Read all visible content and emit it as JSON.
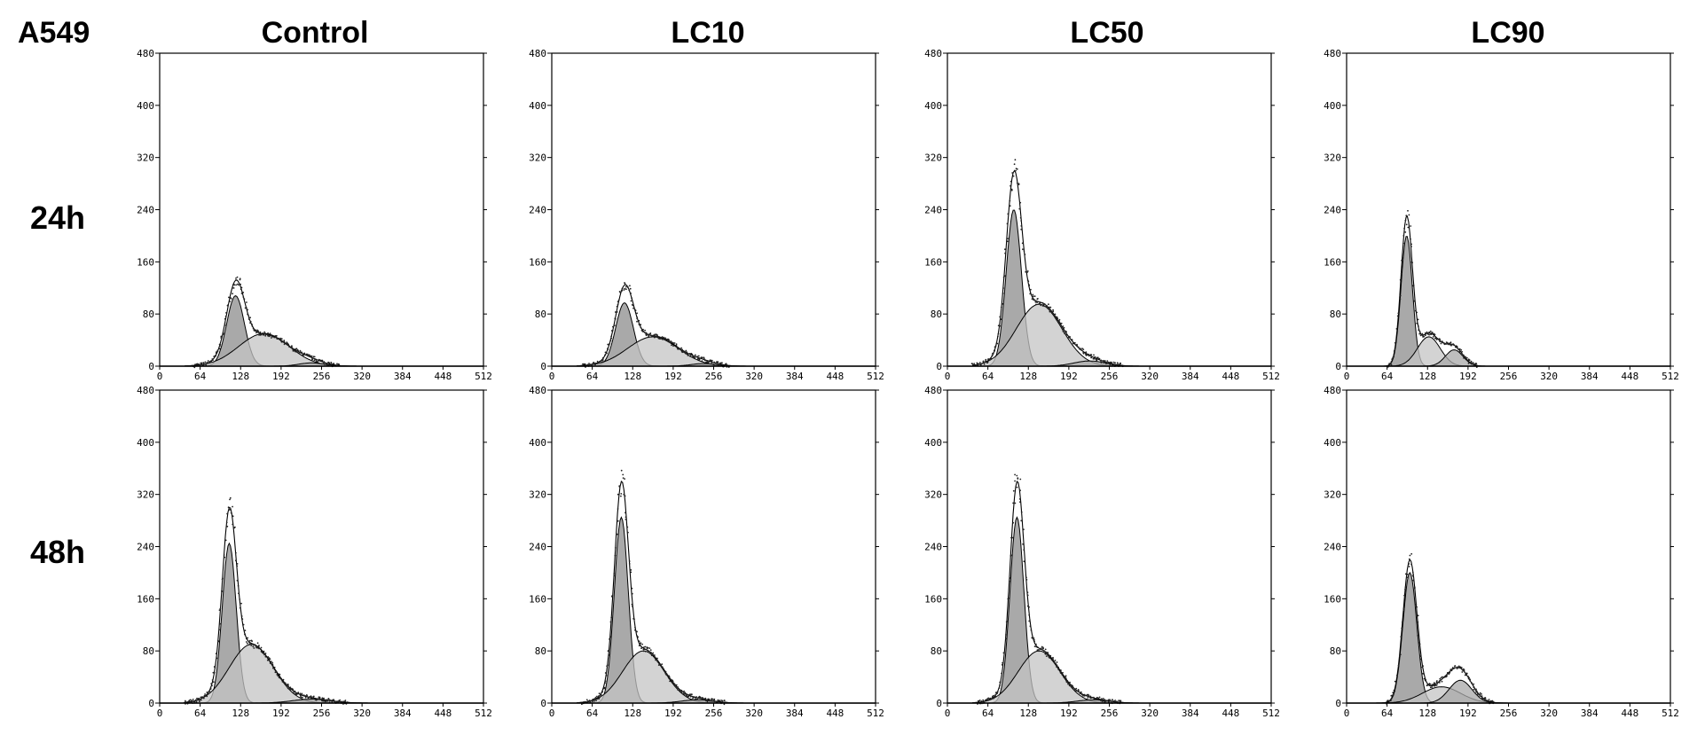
{
  "figure": {
    "cell_line": "A549",
    "columns": [
      "Control",
      "LC10",
      "LC50",
      "LC90"
    ],
    "rows": [
      "24h",
      "48h"
    ]
  },
  "axis": {
    "x_ticks": [
      0,
      64,
      128,
      192,
      256,
      320,
      384,
      448,
      512
    ],
    "y_ticks": [
      0,
      80,
      160,
      240,
      320,
      400,
      480
    ],
    "xlim": [
      0,
      512
    ],
    "ylim": [
      0,
      480
    ]
  },
  "colors": {
    "ink": "#000000",
    "g1_fill": "#8c8c8c",
    "s_fill": "#c4c4c4",
    "g2_fill": "#a8a8a8",
    "dots": "#222222"
  },
  "chart_data": [
    {
      "type": "area",
      "row": "24h",
      "column": "Control",
      "xlim": [
        0,
        512
      ],
      "ylim": [
        0,
        480
      ],
      "series": [
        {
          "mean": 120,
          "sd": 14,
          "peak": 108
        },
        {
          "mean": 165,
          "sd": 40,
          "peak": 50
        },
        {
          "mean": 240,
          "sd": 20,
          "peak": 5
        }
      ],
      "envelope_peak": 132
    },
    {
      "type": "area",
      "row": "24h",
      "column": "LC10",
      "xlim": [
        0,
        512
      ],
      "ylim": [
        0,
        480
      ],
      "series": [
        {
          "mean": 115,
          "sd": 14,
          "peak": 97
        },
        {
          "mean": 160,
          "sd": 40,
          "peak": 45
        },
        {
          "mean": 240,
          "sd": 20,
          "peak": 4
        }
      ],
      "envelope_peak": 125
    },
    {
      "type": "area",
      "row": "24h",
      "column": "LC50",
      "xlim": [
        0,
        512
      ],
      "ylim": [
        0,
        480
      ],
      "series": [
        {
          "mean": 105,
          "sd": 12,
          "peak": 240
        },
        {
          "mean": 145,
          "sd": 36,
          "peak": 95
        },
        {
          "mean": 225,
          "sd": 25,
          "peak": 8
        }
      ],
      "envelope_peak": 300
    },
    {
      "type": "area",
      "row": "24h",
      "column": "LC90",
      "xlim": [
        0,
        512
      ],
      "ylim": [
        0,
        480
      ],
      "series": [
        {
          "mean": 95,
          "sd": 9,
          "peak": 200
        },
        {
          "mean": 130,
          "sd": 18,
          "peak": 45
        },
        {
          "mean": 170,
          "sd": 14,
          "peak": 25
        }
      ],
      "envelope_peak": 230
    },
    {
      "type": "area",
      "row": "48h",
      "column": "Control",
      "xlim": [
        0,
        512
      ],
      "ylim": [
        0,
        480
      ],
      "series": [
        {
          "mean": 110,
          "sd": 11,
          "peak": 245
        },
        {
          "mean": 145,
          "sd": 35,
          "peak": 90
        },
        {
          "mean": 240,
          "sd": 30,
          "peak": 6
        }
      ],
      "envelope_peak": 300
    },
    {
      "type": "area",
      "row": "48h",
      "column": "LC10",
      "xlim": [
        0,
        512
      ],
      "ylim": [
        0,
        480
      ],
      "series": [
        {
          "mean": 110,
          "sd": 11,
          "peak": 285
        },
        {
          "mean": 145,
          "sd": 33,
          "peak": 80
        },
        {
          "mean": 230,
          "sd": 25,
          "peak": 5
        }
      ],
      "envelope_peak": 340
    },
    {
      "type": "area",
      "row": "48h",
      "column": "LC50",
      "xlim": [
        0,
        512
      ],
      "ylim": [
        0,
        480
      ],
      "series": [
        {
          "mean": 110,
          "sd": 11,
          "peak": 285
        },
        {
          "mean": 145,
          "sd": 33,
          "peak": 80
        },
        {
          "mean": 230,
          "sd": 25,
          "peak": 5
        }
      ],
      "envelope_peak": 340
    },
    {
      "type": "area",
      "row": "48h",
      "column": "LC90",
      "xlim": [
        0,
        512
      ],
      "ylim": [
        0,
        480
      ],
      "series": [
        {
          "mean": 100,
          "sd": 11,
          "peak": 200
        },
        {
          "mean": 150,
          "sd": 30,
          "peak": 25
        },
        {
          "mean": 180,
          "sd": 18,
          "peak": 35
        }
      ],
      "envelope_peak": 220
    }
  ]
}
